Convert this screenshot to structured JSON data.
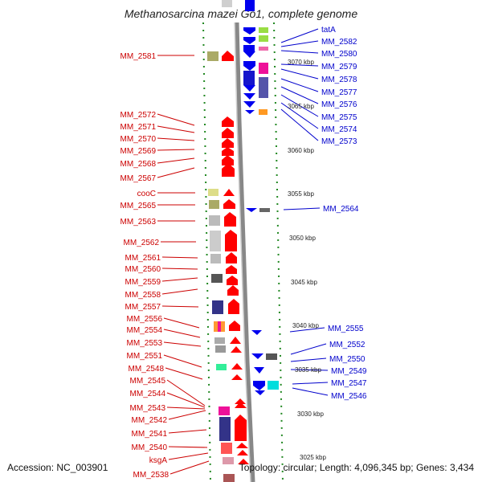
{
  "title": "Methanosarcina mazei Go1, complete genome",
  "footer": {
    "accession": "Accession: NC_003901",
    "info": "Topology: circular; Length: 4,096,345 bp; Genes: 3,434"
  },
  "ticks": [
    "3070 kbp",
    "3065 kbp",
    "3060 kbp",
    "3055 kbp",
    "3050 kbp",
    "3045 kbp",
    "3040 kbp",
    "3035 kbp",
    "3030 kbp",
    "3025 kbp"
  ],
  "left_labels": [
    "MM_2581",
    "MM_2572",
    "MM_2571",
    "MM_2570",
    "MM_2569",
    "MM_2568",
    "MM_2567",
    "cooC",
    "MM_2565",
    "MM_2563",
    "MM_2562",
    "MM_2561",
    "MM_2560",
    "MM_2559",
    "MM_2558",
    "MM_2557",
    "MM_2556",
    "MM_2554",
    "MM_2553",
    "MM_2551",
    "MM_2548",
    "MM_2545",
    "MM_2544",
    "MM_2543",
    "MM_2542",
    "MM_2541",
    "MM_2540",
    "ksgA",
    "MM_2538"
  ],
  "right_labels": [
    "tatA",
    "MM_2582",
    "MM_2580",
    "MM_2579",
    "MM_2578",
    "MM_2577",
    "MM_2576",
    "MM_2575",
    "MM_2574",
    "MM_2573",
    "MM_2564",
    "MM_2555",
    "MM_2552",
    "MM_2550",
    "MM_2549",
    "MM_2547",
    "MM_2546"
  ],
  "colors": {
    "forward_strand": "#ff0000",
    "reverse_strand": "#0000ee",
    "left_label": "#cc0000",
    "right_label": "#0000cc",
    "dotted_track": "#228822",
    "backbone": "#888888"
  }
}
